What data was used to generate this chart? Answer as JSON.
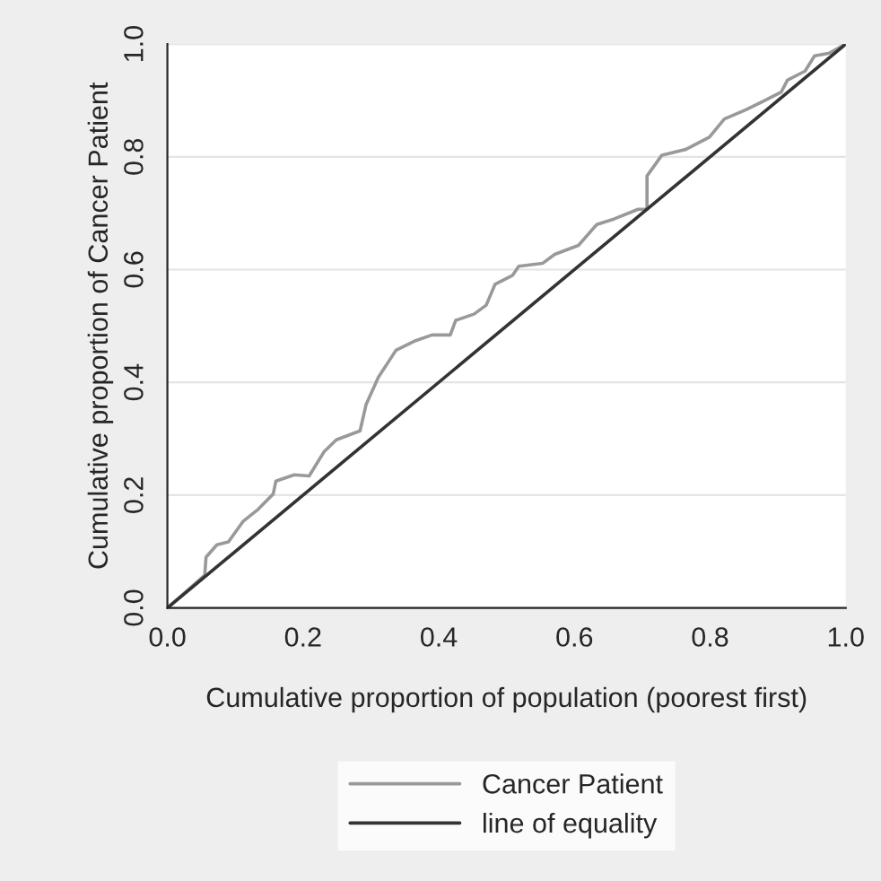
{
  "chart_data": {
    "type": "line",
    "xlabel": "Cumulative proportion of population (poorest first)",
    "ylabel": "Cumulative proportion of Cancer Patient",
    "xlim": [
      0,
      1
    ],
    "ylim": [
      0,
      1
    ],
    "xticks": [
      {
        "value": 0,
        "label": "0.0"
      },
      0.2,
      0.4,
      0.6,
      0.8,
      {
        "value": 1,
        "label": "1.0"
      }
    ],
    "yticks": [
      {
        "value": 0,
        "label": "0.0"
      },
      0.2,
      0.4,
      0.6,
      0.8,
      {
        "value": 1,
        "label": "1.0"
      }
    ],
    "grid": "y",
    "legend": "bottom",
    "series": [
      {
        "name": "Cancer Patient",
        "color": "#999999",
        "x": [
          0,
          0.055,
          0.057,
          0.073,
          0.09,
          0.112,
          0.134,
          0.156,
          0.16,
          0.187,
          0.209,
          0.231,
          0.249,
          0.284,
          0.293,
          0.311,
          0.337,
          0.364,
          0.39,
          0.417,
          0.425,
          0.452,
          0.47,
          0.483,
          0.509,
          0.518,
          0.553,
          0.571,
          0.606,
          0.633,
          0.659,
          0.694,
          0.707,
          0.707,
          0.729,
          0.764,
          0.799,
          0.821,
          0.852,
          0.879,
          0.905,
          0.914,
          0.94,
          0.954,
          0.976,
          1.0
        ],
        "values": [
          0,
          0.058,
          0.09,
          0.112,
          0.117,
          0.154,
          0.175,
          0.202,
          0.225,
          0.236,
          0.234,
          0.277,
          0.298,
          0.314,
          0.361,
          0.409,
          0.457,
          0.473,
          0.484,
          0.484,
          0.51,
          0.521,
          0.537,
          0.574,
          0.59,
          0.606,
          0.611,
          0.627,
          0.643,
          0.68,
          0.69,
          0.707,
          0.707,
          0.766,
          0.803,
          0.813,
          0.835,
          0.867,
          0.883,
          0.899,
          0.915,
          0.936,
          0.952,
          0.979,
          0.984,
          1.0
        ]
      },
      {
        "name": "line of equality",
        "color": "#333333",
        "x": [
          0,
          1
        ],
        "values": [
          0,
          1
        ]
      }
    ]
  }
}
